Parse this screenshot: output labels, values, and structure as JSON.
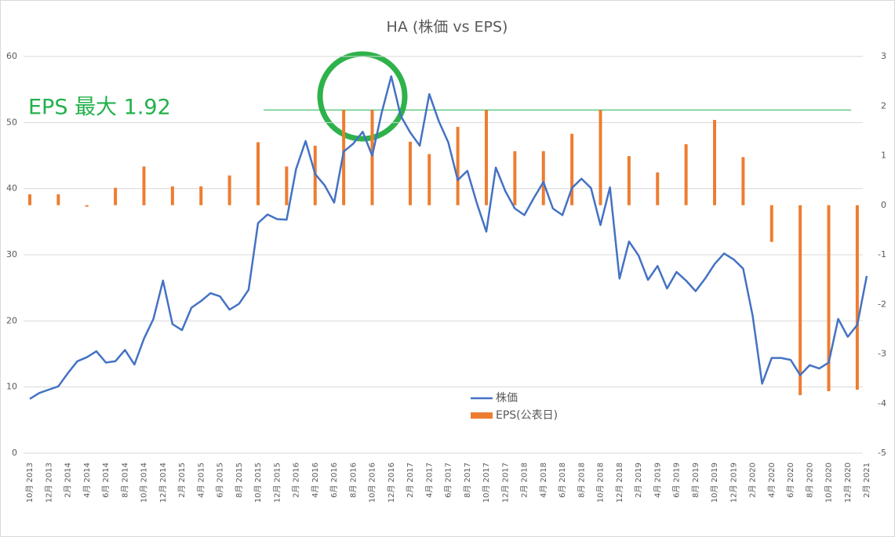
{
  "chart_data": {
    "type": "line_bar",
    "title": "HA (株価 vs EPS)",
    "annotation": "EPS 最大  1.92",
    "reference_line": 1.92,
    "categories": [
      "10月 2013",
      null,
      "12月 2013",
      null,
      "2月 2014",
      null,
      "4月 2014",
      null,
      "6月 2014",
      null,
      "8月 2014",
      null,
      "10月 2014",
      null,
      "12月 2014",
      null,
      "2月 2015",
      null,
      "4月 2015",
      null,
      "6月 2015",
      null,
      "8月 2015",
      null,
      "10月 2015",
      null,
      "12月 2015",
      null,
      "2月 2016",
      null,
      "4月 2016",
      null,
      "6月 2016",
      null,
      "8月 2016",
      null,
      "10月 2016",
      null,
      "12月 2016",
      null,
      "2月 2017",
      null,
      "4月 2017",
      null,
      "6月 2017",
      null,
      "8月 2017",
      null,
      "10月 2017",
      null,
      "12月 2017",
      null,
      "2月 2018",
      null,
      "4月 2018",
      null,
      "6月 2018",
      null,
      "8月 2018",
      null,
      "10月 2018",
      null,
      "12月 2018",
      null,
      "2月 2019",
      null,
      "4月 2019",
      null,
      "6月 2019",
      null,
      "8月 2019",
      null,
      "10月 2019",
      null,
      "12月 2019",
      null,
      "2月 2020",
      null,
      "4月 2020",
      null,
      "6月 2020",
      null,
      "8月 2020",
      null,
      "10月 2020",
      null,
      "12月 2020",
      null,
      "2月 2021"
    ],
    "series": [
      {
        "name": "株価",
        "type": "line",
        "color": "#4472c4",
        "values": [
          8.2,
          9.1,
          9.6,
          10.1,
          12.1,
          13.9,
          14.5,
          15.4,
          13.7,
          13.9,
          15.6,
          13.4,
          17.3,
          20.3,
          26.1,
          19.5,
          18.6,
          22.0,
          23.0,
          24.2,
          23.7,
          21.7,
          22.6,
          24.7,
          34.8,
          36.1,
          35.4,
          35.3,
          43.0,
          47.2,
          42.2,
          40.5,
          37.9,
          45.6,
          46.8,
          48.6,
          45.0,
          51.5,
          57.0,
          51.0,
          48.5,
          46.5,
          54.3,
          50.2,
          47.0,
          41.3,
          42.7,
          37.8,
          33.5,
          43.2,
          39.6,
          37.0,
          36.0,
          38.6,
          41.0,
          37.0,
          36.0,
          40.1,
          41.5,
          40.1,
          34.5,
          40.2,
          26.4,
          32.0,
          29.9,
          26.2,
          28.3,
          24.9,
          27.4,
          26.1,
          24.5,
          26.4,
          28.6,
          30.2,
          29.3,
          27.9,
          20.8,
          10.5,
          14.4,
          14.4,
          14.1,
          11.8,
          13.3,
          12.8,
          13.7,
          20.3,
          17.6,
          19.4,
          26.8
        ]
      },
      {
        "name": "EPS(公表日)",
        "type": "bar",
        "axis": "y2",
        "color": "#ed7d31",
        "values": [
          0.22,
          null,
          null,
          0.22,
          null,
          null,
          -0.03,
          null,
          null,
          0.35,
          null,
          null,
          0.78,
          null,
          null,
          0.38,
          null,
          null,
          0.38,
          null,
          null,
          0.6,
          null,
          null,
          1.27,
          null,
          null,
          0.78,
          null,
          null,
          1.2,
          null,
          null,
          1.92,
          null,
          null,
          1.92,
          null,
          null,
          null,
          1.28,
          null,
          1.03,
          null,
          null,
          1.58,
          null,
          null,
          1.92,
          null,
          null,
          1.09,
          null,
          null,
          1.09,
          null,
          null,
          1.44,
          null,
          null,
          1.92,
          null,
          null,
          0.99,
          null,
          null,
          0.66,
          null,
          null,
          1.23,
          null,
          null,
          1.72,
          null,
          null,
          0.97,
          null,
          null,
          -0.74,
          null,
          null,
          -3.83,
          null,
          null,
          -3.75,
          null,
          null,
          -3.72,
          null
        ]
      }
    ],
    "ylim": [
      0,
      60
    ],
    "yticks": [
      0,
      10,
      20,
      30,
      40,
      50,
      60
    ],
    "y2lim": [
      -5,
      3
    ],
    "y2ticks": [
      -5,
      -4,
      -3,
      -2,
      -1,
      0,
      1,
      2,
      3
    ],
    "grid": true
  }
}
